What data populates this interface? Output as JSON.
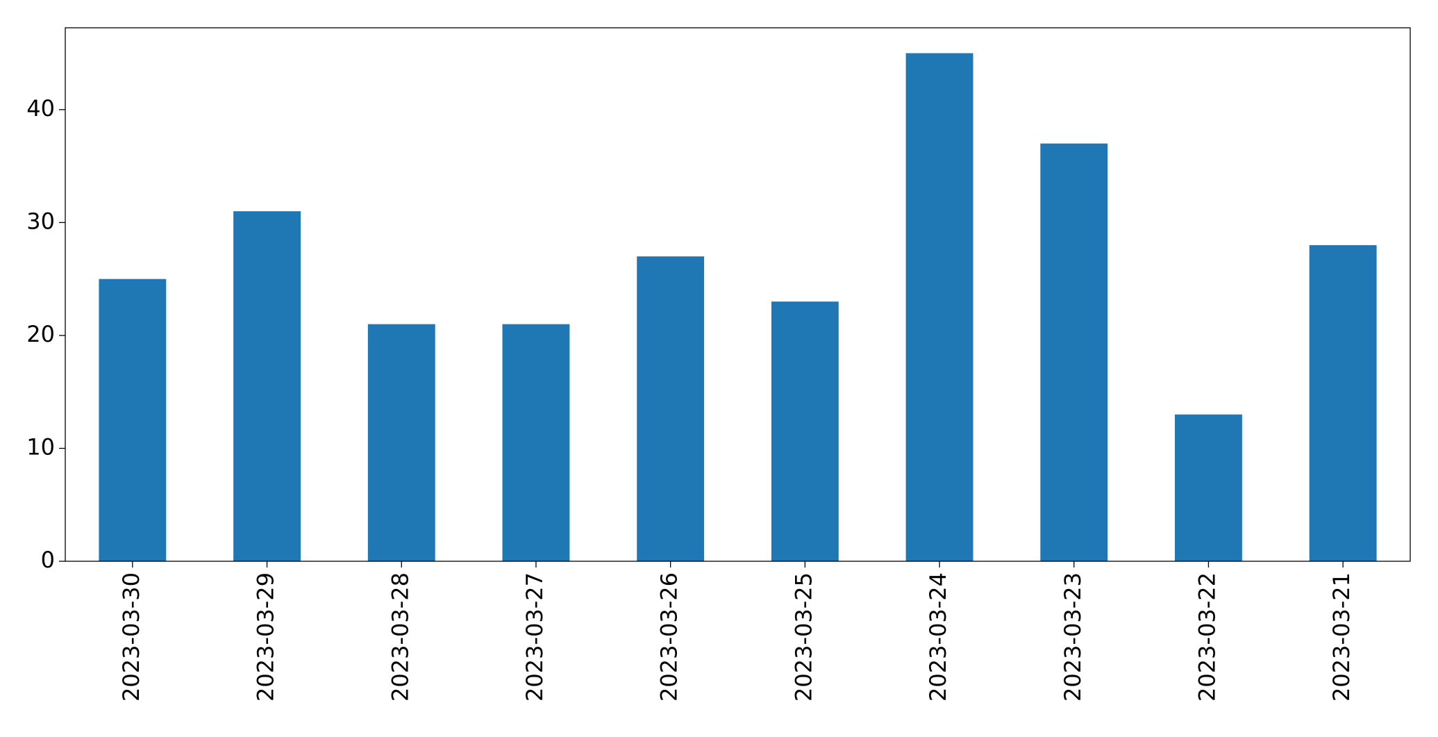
{
  "chart_data": {
    "type": "bar",
    "categories": [
      "2023-03-30",
      "2023-03-29",
      "2023-03-28",
      "2023-03-27",
      "2023-03-26",
      "2023-03-25",
      "2023-03-24",
      "2023-03-23",
      "2023-03-22",
      "2023-03-21"
    ],
    "values": [
      25,
      31,
      21,
      21,
      27,
      23,
      45,
      37,
      13,
      28
    ],
    "color": "#1f77b4",
    "ylim": [
      0,
      47.25
    ],
    "yticks": [
      0,
      10,
      20,
      30,
      40
    ],
    "grid": false
  }
}
